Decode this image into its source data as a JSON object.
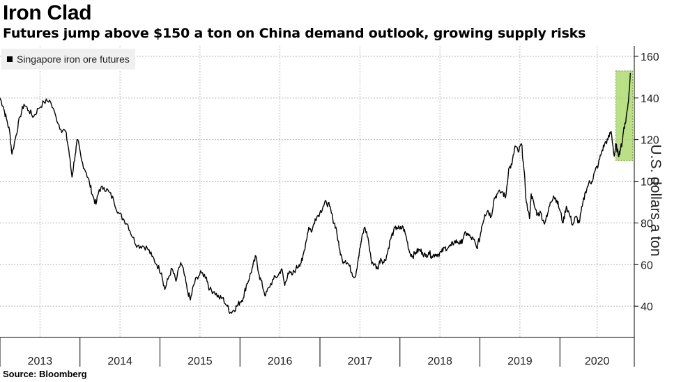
{
  "title": "Iron Clad",
  "subtitle": "Futures jump above $150 a ton on China demand outlook, growing supply risks",
  "source": "Source: Bloomberg",
  "chart_data": {
    "type": "line",
    "ylabel": "U.S. dollars a ton",
    "ylim": [
      25,
      165
    ],
    "yticks": [
      40,
      60,
      80,
      100,
      120,
      140,
      160
    ],
    "y_axis_position": "right",
    "xlim": [
      2013.0,
      2020.93
    ],
    "xticks": [
      {
        "label": "2013",
        "pos": 2013.0
      },
      {
        "label": "2014",
        "pos": 2014.0
      },
      {
        "label": "2015",
        "pos": 2015.0
      },
      {
        "label": "2016",
        "pos": 2016.0
      },
      {
        "label": "2017",
        "pos": 2017.0
      },
      {
        "label": "2018",
        "pos": 2018.0
      },
      {
        "label": "2019",
        "pos": 2019.0
      },
      {
        "label": "2020",
        "pos": 2020.0
      }
    ],
    "grid": true,
    "legend": "top-left",
    "series": [
      {
        "name": "Singapore iron ore futures",
        "color": "#000000",
        "points": [
          [
            2013.0,
            140
          ],
          [
            2013.04,
            136
          ],
          [
            2013.08,
            130
          ],
          [
            2013.12,
            124
          ],
          [
            2013.15,
            113
          ],
          [
            2013.2,
            122
          ],
          [
            2013.25,
            131
          ],
          [
            2013.3,
            137
          ],
          [
            2013.36,
            134
          ],
          [
            2013.42,
            131
          ],
          [
            2013.48,
            135
          ],
          [
            2013.55,
            138
          ],
          [
            2013.62,
            139
          ],
          [
            2013.7,
            131
          ],
          [
            2013.76,
            125
          ],
          [
            2013.82,
            124
          ],
          [
            2013.86,
            115
          ],
          [
            2013.9,
            102
          ],
          [
            2013.94,
            113
          ],
          [
            2013.97,
            120
          ],
          [
            2014.02,
            110
          ],
          [
            2014.08,
            104
          ],
          [
            2014.12,
            99
          ],
          [
            2014.16,
            93
          ],
          [
            2014.2,
            89
          ],
          [
            2014.24,
            96
          ],
          [
            2014.3,
            97
          ],
          [
            2014.36,
            95
          ],
          [
            2014.42,
            91
          ],
          [
            2014.48,
            85
          ],
          [
            2014.54,
            82
          ],
          [
            2014.6,
            79
          ],
          [
            2014.66,
            73
          ],
          [
            2014.72,
            69
          ],
          [
            2014.78,
            69
          ],
          [
            2014.84,
            68
          ],
          [
            2014.9,
            64
          ],
          [
            2014.96,
            60
          ],
          [
            2015.02,
            56
          ],
          [
            2015.06,
            48
          ],
          [
            2015.1,
            53
          ],
          [
            2015.15,
            58
          ],
          [
            2015.2,
            52
          ],
          [
            2015.26,
            61
          ],
          [
            2015.3,
            56
          ],
          [
            2015.34,
            48
          ],
          [
            2015.38,
            43
          ],
          [
            2015.42,
            50
          ],
          [
            2015.46,
            54
          ],
          [
            2015.52,
            56
          ],
          [
            2015.58,
            54
          ],
          [
            2015.62,
            48
          ],
          [
            2015.68,
            47
          ],
          [
            2015.74,
            44
          ],
          [
            2015.78,
            44
          ],
          [
            2015.84,
            40
          ],
          [
            2015.88,
            37
          ],
          [
            2015.92,
            38
          ],
          [
            2015.96,
            40
          ],
          [
            2016.0,
            42
          ],
          [
            2016.04,
            44
          ],
          [
            2016.08,
            50
          ],
          [
            2016.12,
            54
          ],
          [
            2016.16,
            59
          ],
          [
            2016.2,
            64
          ],
          [
            2016.24,
            55
          ],
          [
            2016.28,
            50
          ],
          [
            2016.32,
            45
          ],
          [
            2016.36,
            49
          ],
          [
            2016.42,
            53
          ],
          [
            2016.48,
            55
          ],
          [
            2016.52,
            58
          ],
          [
            2016.56,
            50
          ],
          [
            2016.6,
            56
          ],
          [
            2016.65,
            55
          ],
          [
            2016.7,
            58
          ],
          [
            2016.74,
            60
          ],
          [
            2016.78,
            62
          ],
          [
            2016.82,
            70
          ],
          [
            2016.86,
            78
          ],
          [
            2016.9,
            76
          ],
          [
            2016.94,
            82
          ],
          [
            2017.0,
            85
          ],
          [
            2017.04,
            88
          ],
          [
            2017.08,
            90
          ],
          [
            2017.12,
            88
          ],
          [
            2017.16,
            82
          ],
          [
            2017.2,
            78
          ],
          [
            2017.24,
            68
          ],
          [
            2017.28,
            62
          ],
          [
            2017.32,
            62
          ],
          [
            2017.36,
            60
          ],
          [
            2017.4,
            56
          ],
          [
            2017.44,
            54
          ],
          [
            2017.48,
            63
          ],
          [
            2017.52,
            72
          ],
          [
            2017.56,
            78
          ],
          [
            2017.6,
            73
          ],
          [
            2017.64,
            62
          ],
          [
            2017.68,
            60
          ],
          [
            2017.72,
            58
          ],
          [
            2017.76,
            63
          ],
          [
            2017.8,
            61
          ],
          [
            2017.84,
            65
          ],
          [
            2017.88,
            72
          ],
          [
            2017.92,
            76
          ],
          [
            2017.96,
            78
          ],
          [
            2018.0,
            77
          ],
          [
            2018.04,
            78
          ],
          [
            2018.08,
            73
          ],
          [
            2018.12,
            66
          ],
          [
            2018.16,
            64
          ],
          [
            2018.2,
            66
          ],
          [
            2018.24,
            67
          ],
          [
            2018.28,
            66
          ],
          [
            2018.32,
            64
          ],
          [
            2018.36,
            66
          ],
          [
            2018.4,
            64
          ],
          [
            2018.44,
            65
          ],
          [
            2018.48,
            65
          ],
          [
            2018.52,
            66
          ],
          [
            2018.56,
            68
          ],
          [
            2018.6,
            68
          ],
          [
            2018.64,
            69
          ],
          [
            2018.68,
            71
          ],
          [
            2018.72,
            71
          ],
          [
            2018.76,
            70
          ],
          [
            2018.8,
            74
          ],
          [
            2018.84,
            75
          ],
          [
            2018.88,
            73
          ],
          [
            2018.92,
            72
          ],
          [
            2018.96,
            68
          ],
          [
            2019.0,
            73
          ],
          [
            2019.02,
            78
          ],
          [
            2019.06,
            84
          ],
          [
            2019.1,
            86
          ],
          [
            2019.14,
            83
          ],
          [
            2019.18,
            92
          ],
          [
            2019.22,
            94
          ],
          [
            2019.28,
            95
          ],
          [
            2019.32,
            92
          ],
          [
            2019.36,
            106
          ],
          [
            2019.4,
            108
          ],
          [
            2019.44,
            117
          ],
          [
            2019.48,
            114
          ],
          [
            2019.52,
            118
          ],
          [
            2019.55,
            106
          ],
          [
            2019.58,
            90
          ],
          [
            2019.62,
            82
          ],
          [
            2019.64,
            94
          ],
          [
            2019.68,
            88
          ],
          [
            2019.72,
            84
          ],
          [
            2019.76,
            85
          ],
          [
            2019.8,
            80
          ],
          [
            2019.84,
            83
          ],
          [
            2019.88,
            90
          ],
          [
            2019.92,
            93
          ],
          [
            2019.96,
            91
          ],
          [
            2020.0,
            86
          ],
          [
            2020.04,
            80
          ],
          [
            2020.08,
            88
          ],
          [
            2020.12,
            84
          ],
          [
            2020.16,
            79
          ],
          [
            2020.2,
            83
          ],
          [
            2020.24,
            80
          ],
          [
            2020.28,
            88
          ],
          [
            2020.32,
            95
          ],
          [
            2020.36,
            99
          ],
          [
            2020.4,
            100
          ],
          [
            2020.44,
            105
          ],
          [
            2020.48,
            108
          ],
          [
            2020.52,
            114
          ],
          [
            2020.56,
            118
          ],
          [
            2020.6,
            120
          ],
          [
            2020.64,
            124
          ],
          [
            2020.68,
            112
          ],
          [
            2020.7,
            118
          ],
          [
            2020.72,
            114
          ],
          [
            2020.74,
            113
          ],
          [
            2020.76,
            116
          ],
          [
            2020.78,
            119
          ],
          [
            2020.8,
            126
          ],
          [
            2020.82,
            128
          ],
          [
            2020.84,
            134
          ],
          [
            2020.86,
            140
          ],
          [
            2020.88,
            152
          ]
        ]
      }
    ],
    "highlight": {
      "x_range": [
        2020.7,
        2020.91
      ],
      "y_range": [
        110,
        153
      ],
      "color": "#a3d65c"
    }
  }
}
